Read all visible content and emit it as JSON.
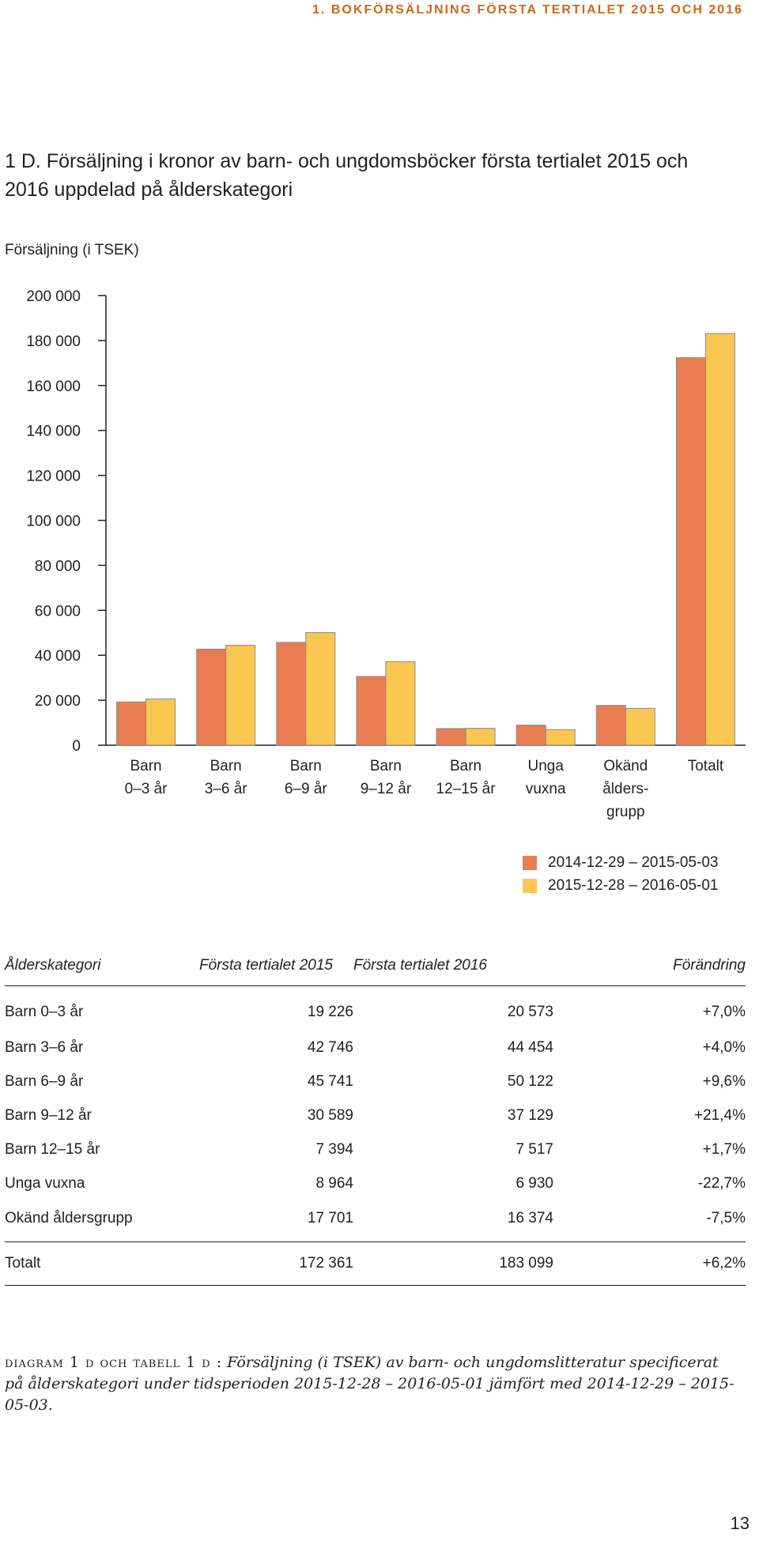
{
  "running_header": "1. BOKFÖRSÄLJNING FÖRSTA TERTIALET 2015 OCH 2016",
  "page_number": "13",
  "colors": {
    "series_2015": "#ea7d52",
    "series_2016": "#fcc652",
    "axis": "#231f20",
    "bar_stroke": "#8a8a8a"
  },
  "chart_data": {
    "type": "bar",
    "title": "1 D. Försäljning i kronor av barn- och ungdomsböcker första tertialet 2015 och 2016 uppdelad på ålderskategori",
    "ylabel": "Försäljning (i TSEK)",
    "xlabel": "",
    "ylim": [
      0,
      200000
    ],
    "yticks": [
      0,
      20000,
      40000,
      60000,
      80000,
      100000,
      120000,
      140000,
      160000,
      180000,
      200000
    ],
    "ytick_labels": [
      "0",
      "20 000",
      "40 000",
      "60 000",
      "80 000",
      "100 000",
      "120 000",
      "140 000",
      "160 000",
      "180 000",
      "200 000"
    ],
    "categories": [
      [
        "Barn",
        "0–3 år"
      ],
      [
        "Barn",
        "3–6 år"
      ],
      [
        "Barn",
        "6–9 år"
      ],
      [
        "Barn",
        "9–12 år"
      ],
      [
        "Barn",
        "12–15 år"
      ],
      [
        "Unga",
        "vuxna"
      ],
      [
        "Okänd",
        "ålders-",
        "grupp"
      ],
      [
        "Totalt"
      ]
    ],
    "series": [
      {
        "name": "2014-12-29 – 2015-05-03",
        "values": [
          19226,
          42746,
          45741,
          30589,
          7394,
          8964,
          17701,
          172361
        ]
      },
      {
        "name": "2015-12-28 – 2016-05-01",
        "values": [
          20573,
          44454,
          50122,
          37129,
          7517,
          6930,
          16374,
          183099
        ]
      }
    ],
    "legend_position": "bottom-right",
    "grid": false
  },
  "table": {
    "headers": [
      "Ålderskategori",
      "Första tertialet 2015",
      "Första tertialet 2016",
      "Förändring"
    ],
    "rows": [
      [
        "Barn 0–3 år",
        "19 226",
        "20 573",
        "+7,0%"
      ],
      [
        "Barn 3–6 år",
        "42 746",
        "44 454",
        "+4,0%"
      ],
      [
        "Barn 6–9 år",
        "45 741",
        "50 122",
        "+9,6%"
      ],
      [
        "Barn 9–12 år",
        "30 589",
        "37 129",
        "+21,4%"
      ],
      [
        "Barn 12–15 år",
        "7 394",
        "7 517",
        "+1,7%"
      ],
      [
        "Unga vuxna",
        "8 964",
        "6 930",
        "-22,7%"
      ],
      [
        "Okänd åldersgrupp",
        "17 701",
        "16 374",
        "-7,5%"
      ]
    ],
    "total": [
      "Totalt",
      "172 361",
      "183 099",
      "+6,2%"
    ]
  },
  "caption": {
    "label": "diagram 1 d och tabell 1 d :",
    "text": "Försäljning (i TSEK) av barn- och ungdomslitteratur specificerat på ålderskategori under tidsperioden 2015-12-28 – 2016-05-01 jämfört med 2014-12-29 – 2015-05-03."
  }
}
